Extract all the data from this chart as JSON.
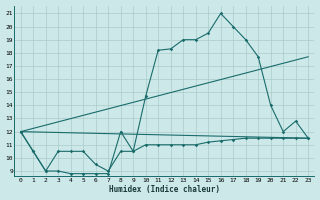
{
  "xlabel": "Humidex (Indice chaleur)",
  "bg_color": "#cce8e8",
  "grid_color": "#aacccc",
  "line_color": "#1a6b6b",
  "xlim": [
    -0.5,
    23.5
  ],
  "ylim": [
    8.6,
    21.6
  ],
  "yticks": [
    9,
    10,
    11,
    12,
    13,
    14,
    15,
    16,
    17,
    18,
    19,
    20,
    21
  ],
  "xticks": [
    0,
    1,
    2,
    3,
    4,
    5,
    6,
    7,
    8,
    9,
    10,
    11,
    12,
    13,
    14,
    15,
    16,
    17,
    18,
    19,
    20,
    21,
    22,
    23
  ],
  "series_markers": [
    {
      "x": [
        0,
        1,
        2,
        3,
        4,
        5,
        6,
        7,
        8,
        9,
        10,
        11,
        12,
        13,
        14,
        15,
        16,
        17,
        18,
        19,
        20,
        21,
        22,
        23
      ],
      "y": [
        12,
        10.5,
        9,
        9,
        8.8,
        8.8,
        8.8,
        8.8,
        12,
        10.5,
        14.7,
        18.2,
        18.3,
        19,
        19,
        19.5,
        21,
        20,
        19,
        17.7,
        14,
        12,
        12.8,
        11.5
      ]
    },
    {
      "x": [
        0,
        1,
        2,
        3,
        4,
        5,
        6,
        7,
        8,
        9,
        10,
        11,
        12,
        13,
        14,
        15,
        16,
        17,
        18,
        19,
        20,
        21,
        22,
        23
      ],
      "y": [
        12,
        10.5,
        9,
        10.5,
        10.5,
        10.5,
        9.5,
        9,
        10.5,
        10.5,
        11,
        11,
        11,
        11,
        11,
        11.2,
        11.3,
        11.4,
        11.5,
        11.5,
        11.5,
        11.5,
        11.5,
        11.5
      ]
    }
  ],
  "series_lines": [
    {
      "x": [
        0,
        23
      ],
      "y": [
        12,
        17.7
      ]
    },
    {
      "x": [
        0,
        23
      ],
      "y": [
        12,
        11.5
      ]
    }
  ]
}
